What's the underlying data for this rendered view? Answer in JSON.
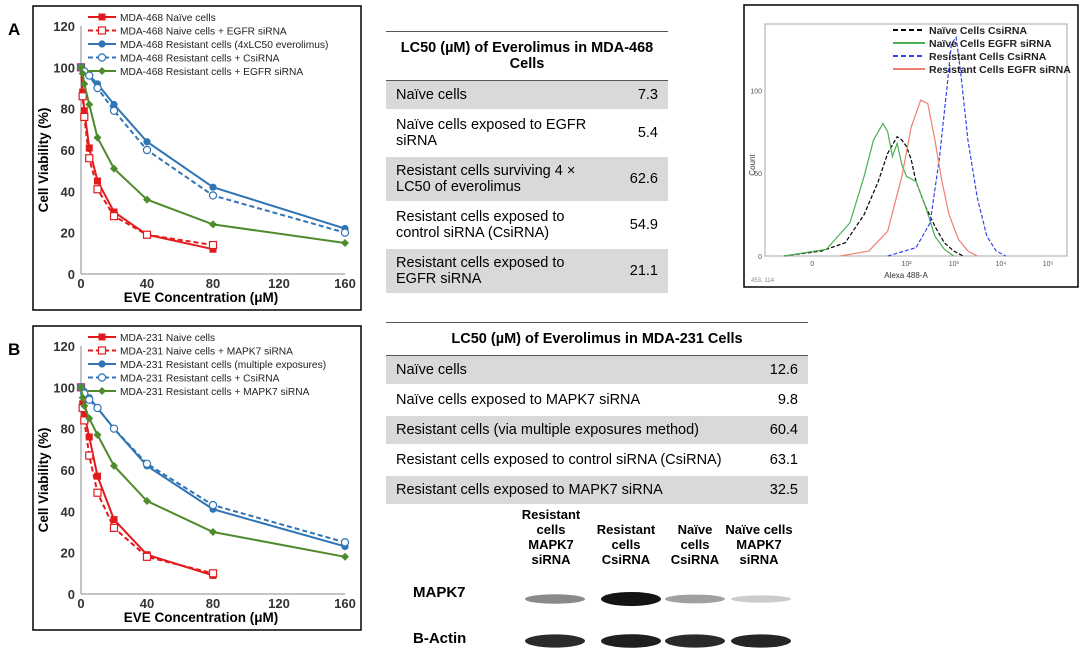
{
  "panel_labels": {
    "a": "A",
    "b": "B"
  },
  "chart_data": [
    {
      "type": "line",
      "panel": "A",
      "xlabel": "EVE Concentration (μM)",
      "ylabel": "Cell Viability (%)",
      "xlim": [
        0,
        160
      ],
      "ylim": [
        0,
        120
      ],
      "xticks": [
        0,
        40,
        80,
        120,
        160
      ],
      "yticks": [
        0,
        20,
        40,
        60,
        80,
        100,
        120
      ],
      "series": [
        {
          "name": "MDA-468 Naïve cells",
          "color": "#e31a1c",
          "dash": false,
          "marker": "square-filled",
          "x": [
            0,
            1,
            2,
            5,
            10,
            20,
            40,
            80
          ],
          "y": [
            100,
            88,
            79,
            61,
            45,
            30,
            19,
            12
          ]
        },
        {
          "name": "MDA-468 Naive cells + EGFR siRNA",
          "color": "#e31a1c",
          "dash": true,
          "marker": "square-open",
          "x": [
            0,
            1,
            2,
            5,
            10,
            20,
            40,
            80
          ],
          "y": [
            100,
            86,
            76,
            56,
            41,
            28,
            19,
            14
          ]
        },
        {
          "name": "MDA-468 Resistant cells (4xLC50 everolimus)",
          "color": "#2f75b5",
          "dash": false,
          "marker": "circle-filled",
          "x": [
            0,
            2,
            5,
            10,
            20,
            40,
            80,
            160
          ],
          "y": [
            100,
            98,
            96,
            92,
            82,
            64,
            42,
            22
          ]
        },
        {
          "name": "MDA-468 Resistant cells + CsiRNA",
          "color": "#2f75b5",
          "dash": true,
          "marker": "circle-open",
          "x": [
            0,
            2,
            5,
            10,
            20,
            40,
            80,
            160
          ],
          "y": [
            100,
            98,
            96,
            90,
            79,
            60,
            38,
            20
          ]
        },
        {
          "name": "MDA-468 Resistant cells + EGFR siRNA",
          "color": "#4f8a2d",
          "dash": false,
          "marker": "diamond",
          "x": [
            0,
            1,
            2,
            5,
            10,
            20,
            40,
            80,
            160
          ],
          "y": [
            100,
            97,
            92,
            82,
            66,
            51,
            36,
            24,
            15
          ]
        }
      ]
    },
    {
      "type": "line",
      "panel": "B",
      "xlabel": "EVE Concentration (μM)",
      "ylabel": "Cell Viability (%)",
      "xlim": [
        0,
        160
      ],
      "ylim": [
        0,
        120
      ],
      "xticks": [
        0,
        40,
        80,
        120,
        160
      ],
      "yticks": [
        0,
        20,
        40,
        60,
        80,
        100,
        120
      ],
      "series": [
        {
          "name": "MDA-231 Naive cells",
          "color": "#e31a1c",
          "dash": false,
          "marker": "square-filled",
          "x": [
            0,
            1,
            2,
            5,
            10,
            20,
            40,
            80
          ],
          "y": [
            100,
            92,
            87,
            76,
            57,
            36,
            19,
            9
          ]
        },
        {
          "name": "MDA-231 Naive cells + MAPK7 siRNA",
          "color": "#e31a1c",
          "dash": true,
          "marker": "square-open",
          "x": [
            0,
            1,
            2,
            5,
            10,
            20,
            40,
            80
          ],
          "y": [
            100,
            90,
            84,
            67,
            49,
            32,
            18,
            10
          ]
        },
        {
          "name": "MDA-231 Resistant cells (multiple exposures)",
          "color": "#2f75b5",
          "dash": false,
          "marker": "circle-filled",
          "x": [
            0,
            2,
            5,
            10,
            20,
            40,
            80,
            160
          ],
          "y": [
            100,
            98,
            95,
            90,
            80,
            62,
            41,
            23
          ]
        },
        {
          "name": "MDA-231 Resistant cells + CsiRNA",
          "color": "#2f75b5",
          "dash": true,
          "marker": "circle-open",
          "x": [
            0,
            2,
            5,
            10,
            20,
            40,
            80,
            160
          ],
          "y": [
            100,
            97,
            94,
            90,
            80,
            63,
            43,
            25
          ]
        },
        {
          "name": "MDA-231 Resistant cells + MAPK7 siRNA",
          "color": "#4f8a2d",
          "dash": false,
          "marker": "diamond",
          "x": [
            0,
            1,
            2,
            5,
            10,
            20,
            40,
            80,
            160
          ],
          "y": [
            100,
            95,
            91,
            85,
            77,
            62,
            45,
            30,
            18
          ]
        }
      ]
    },
    {
      "type": "line",
      "panel": "A-inset",
      "title": "",
      "xlabel": "Alexa 488-A",
      "ylabel": "Count",
      "xscale": "log",
      "xlim": [
        -1,
        5.4
      ],
      "ylim": [
        0,
        140
      ],
      "yticks": [
        0,
        50,
        100
      ],
      "xtick_labels": [
        "0",
        "10²",
        "10³",
        "10⁴",
        "10⁵"
      ],
      "corner_text": "453, 114",
      "series": [
        {
          "name": "Naïve Cells CsiRNA",
          "color": "#000000",
          "dash": true,
          "x": [
            -0.6,
            0.2,
            0.7,
            1.1,
            1.4,
            1.6,
            1.8,
            1.9,
            2.0,
            2.1,
            2.2,
            2.4,
            2.6,
            2.8,
            3.0,
            3.2
          ],
          "y": [
            0,
            3,
            8,
            25,
            45,
            62,
            72,
            70,
            66,
            58,
            45,
            30,
            18,
            8,
            3,
            0
          ]
        },
        {
          "name": "Naïve Cells EGFR siRNA",
          "color": "#4caf50",
          "dash": false,
          "x": [
            -0.6,
            0.3,
            0.8,
            1.1,
            1.3,
            1.5,
            1.6,
            1.7,
            1.8,
            1.9,
            2.0,
            2.2,
            2.4,
            2.6,
            2.8,
            3.0
          ],
          "y": [
            0,
            4,
            20,
            48,
            70,
            80,
            75,
            60,
            68,
            55,
            48,
            45,
            30,
            12,
            4,
            0
          ]
        },
        {
          "name": "Resistant Cells CsiRNA",
          "color": "#3344ee",
          "dash": true,
          "x": [
            1.6,
            2.2,
            2.5,
            2.7,
            2.85,
            2.95,
            3.05,
            3.15,
            3.3,
            3.5,
            3.7,
            3.9,
            4.1
          ],
          "y": [
            0,
            5,
            20,
            60,
            100,
            128,
            132,
            110,
            70,
            35,
            12,
            3,
            0
          ]
        },
        {
          "name": "Resistant Cells EGFR siRNA",
          "color": "#f08070",
          "dash": false,
          "x": [
            0.6,
            1.2,
            1.6,
            1.9,
            2.1,
            2.3,
            2.45,
            2.6,
            2.75,
            2.9,
            3.1,
            3.3,
            3.5
          ],
          "y": [
            0,
            3,
            15,
            48,
            78,
            94,
            92,
            70,
            45,
            25,
            10,
            3,
            0
          ]
        }
      ]
    }
  ],
  "table_a": {
    "title": "LC50 (µM) of Everolimus in MDA-468 Cells",
    "rows": [
      {
        "label": "Naïve cells",
        "value": "7.3"
      },
      {
        "label": "Naïve cells exposed to EGFR siRNA",
        "value": "5.4"
      },
      {
        "label": "Resistant cells surviving 4 × LC50 of everolimus",
        "value": "62.6"
      },
      {
        "label": "Resistant cells exposed to control siRNA (CsiRNA)",
        "value": "54.9"
      },
      {
        "label": "Resistant cells exposed to EGFR siRNA",
        "value": "21.1"
      }
    ]
  },
  "table_b": {
    "title": "LC50 (µM) of Everolimus in MDA-231 Cells",
    "rows": [
      {
        "label": "Naïve cells",
        "value": "12.6"
      },
      {
        "label": "Naïve cells exposed to MAPK7 siRNA",
        "value": "9.8"
      },
      {
        "label": "Resistant cells (via multiple exposures method)",
        "value": "60.4"
      },
      {
        "label": "Resistant cells exposed to control siRNA (CsiRNA)",
        "value": "63.1"
      },
      {
        "label": "Resistant cells exposed to MAPK7 siRNA",
        "value": "32.5"
      }
    ]
  },
  "western_blot": {
    "lanes": [
      "Resistant cells MAPK7 siRNA",
      "Resistant cells CsiRNA",
      "Naïve cells CsiRNA",
      "Naïve cells MAPK7 siRNA"
    ],
    "rows": [
      {
        "label": "MAPK7",
        "intensity": [
          0.45,
          1.0,
          0.35,
          0.15
        ]
      },
      {
        "label": "B-Actin",
        "intensity": [
          0.9,
          0.95,
          0.9,
          0.92
        ]
      }
    ]
  }
}
